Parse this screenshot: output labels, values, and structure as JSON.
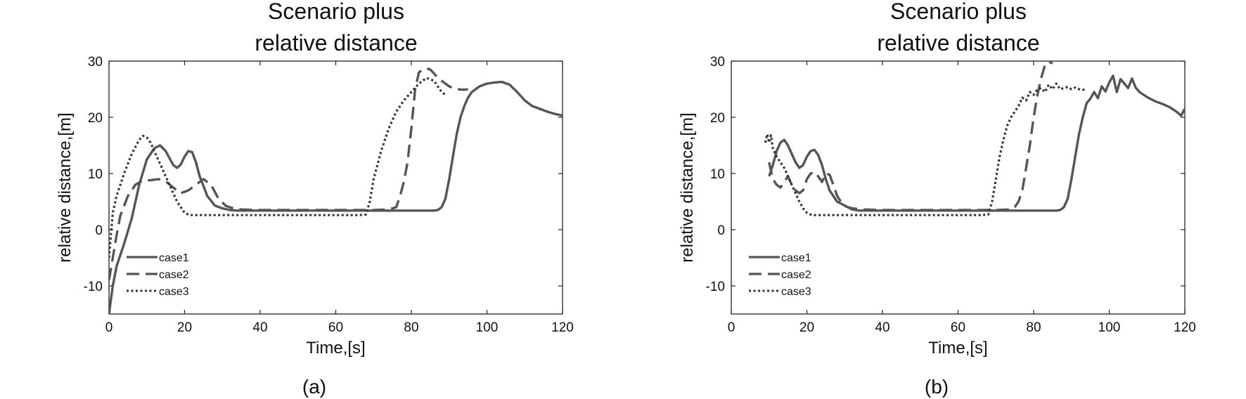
{
  "figure": {
    "captions": [
      "(a)",
      "(b)"
    ]
  },
  "chart_data": [
    {
      "type": "line",
      "title": [
        "Scenario plus",
        "relative distance"
      ],
      "xlabel": "Time,[s]",
      "ylabel": "relative distance,[m]",
      "xlim": [
        0,
        120
      ],
      "ylim": [
        -15,
        30
      ],
      "xticks": [
        0,
        20,
        40,
        60,
        80,
        100,
        120
      ],
      "yticks": [
        -10,
        0,
        10,
        20,
        30
      ],
      "grid": false,
      "legend_position": "bottom-left",
      "series": [
        {
          "name": "case1",
          "style": "solid",
          "color": "#555555",
          "x": [
            0,
            1,
            2,
            4,
            6,
            8,
            10,
            12,
            13.5,
            15,
            17,
            18,
            19,
            20,
            21,
            22,
            23,
            24,
            26,
            28,
            30,
            32,
            34,
            40,
            50,
            60,
            70,
            80,
            86,
            87,
            88,
            89,
            90,
            91,
            92,
            93,
            94,
            95,
            96,
            98,
            100,
            102,
            104,
            106,
            108,
            110,
            112,
            114,
            116,
            118,
            120
          ],
          "y": [
            -15,
            -10,
            -6.5,
            -2.5,
            2,
            8,
            12.5,
            14.5,
            15,
            14,
            11.5,
            11,
            11.6,
            13,
            14,
            13.8,
            12,
            9.5,
            6,
            4.3,
            3.8,
            3.5,
            3.4,
            3.4,
            3.4,
            3.4,
            3.4,
            3.4,
            3.4,
            3.5,
            4,
            5.5,
            9,
            13,
            17,
            20,
            22,
            23.5,
            24.5,
            25.5,
            26,
            26.2,
            26.3,
            25.8,
            24.5,
            23,
            22,
            21.5,
            21,
            20.6,
            20.3
          ]
        },
        {
          "name": "case2",
          "style": "dashed",
          "color": "#555555",
          "x": [
            0,
            1,
            2,
            3,
            5,
            7,
            9,
            11,
            13,
            15,
            17,
            19,
            21,
            23,
            25,
            27,
            29,
            31,
            33,
            35,
            40,
            50,
            60,
            70,
            74,
            76,
            77,
            78,
            79,
            80,
            81,
            82,
            83,
            84,
            85,
            86,
            87,
            88,
            89,
            90,
            92,
            94,
            95
          ],
          "y": [
            -9,
            -5,
            -1,
            2.5,
            6,
            8,
            8.8,
            8.8,
            9,
            8.6,
            7.5,
            6.5,
            7,
            8,
            9,
            8,
            5.5,
            4.2,
            3.8,
            3.6,
            3.5,
            3.5,
            3.5,
            3.5,
            3.6,
            4,
            6,
            8.5,
            12,
            18,
            25,
            28,
            28.5,
            28.7,
            28.5,
            27.8,
            27,
            26.5,
            26,
            25.5,
            25,
            24.9,
            25
          ]
        },
        {
          "name": "case3",
          "style": "dotted",
          "color": "#333333",
          "x": [
            0,
            1,
            2,
            4,
            6,
            8,
            9,
            10,
            11,
            12,
            14,
            16,
            18,
            20,
            21,
            22,
            30,
            40,
            50,
            60,
            66,
            68,
            69,
            70,
            72,
            74,
            76,
            78,
            80,
            82,
            84,
            86,
            87,
            88,
            89
          ],
          "y": [
            -5,
            3,
            6,
            10,
            13.5,
            16,
            16.7,
            16.4,
            15.5,
            14,
            11,
            8,
            5,
            3,
            2.7,
            2.6,
            2.6,
            2.6,
            2.6,
            2.6,
            2.6,
            2.7,
            5,
            9,
            14,
            18,
            21,
            23,
            24.5,
            26,
            27,
            26.5,
            25.5,
            24.5,
            24
          ]
        }
      ]
    },
    {
      "type": "line",
      "title": [
        "Scenario plus",
        "relative distance"
      ],
      "xlabel": "Time,[s]",
      "ylabel": "relative distance,[m]",
      "xlim": [
        0,
        120
      ],
      "ylim": [
        -15,
        30
      ],
      "xticks": [
        0,
        20,
        40,
        60,
        80,
        100,
        120
      ],
      "yticks": [
        -10,
        0,
        10,
        20,
        30
      ],
      "grid": false,
      "legend_position": "bottom-left",
      "series": [
        {
          "name": "case1",
          "style": "solid",
          "color": "#555555",
          "x": [
            10,
            11,
            12,
            13,
            14,
            15,
            16,
            17,
            18,
            19,
            20,
            21,
            22,
            23,
            24,
            25,
            26,
            27,
            28,
            30,
            32,
            34,
            40,
            50,
            60,
            70,
            80,
            86,
            87,
            88,
            89,
            90,
            91,
            92,
            93,
            94,
            95,
            96,
            97,
            98,
            99,
            100,
            101,
            102,
            103,
            104,
            105,
            106,
            107,
            108,
            110,
            112,
            114,
            116,
            118,
            119,
            120
          ],
          "y": [
            9.5,
            11.5,
            14,
            15.5,
            16,
            15,
            13.5,
            12,
            11,
            11.5,
            13,
            14,
            14.2,
            13.3,
            11.5,
            9,
            7,
            6,
            5,
            4.3,
            3.6,
            3.4,
            3.4,
            3.4,
            3.4,
            3.4,
            3.4,
            3.4,
            3.5,
            4,
            5.5,
            9,
            13,
            17,
            20,
            22.5,
            23.3,
            24.5,
            23.4,
            25.5,
            24.6,
            26.2,
            27.4,
            24.5,
            26.8,
            26,
            25.2,
            26.9,
            25.3,
            24.5,
            23.6,
            22.9,
            22.4,
            21.8,
            20.9,
            20.3,
            21.5
          ]
        },
        {
          "name": "case2",
          "style": "dashed",
          "color": "#555555",
          "x": [
            10,
            11,
            12,
            13,
            14,
            15,
            16,
            17,
            18,
            19,
            20,
            21,
            22,
            23,
            24,
            25,
            26,
            27,
            28,
            29,
            30,
            32,
            35,
            40,
            50,
            60,
            70,
            74,
            75,
            76,
            77,
            78,
            79,
            80,
            81,
            82,
            83,
            84,
            85
          ],
          "y": [
            12,
            9,
            8,
            7.5,
            8.5,
            9.5,
            8,
            7,
            6.5,
            7,
            9,
            10,
            10.3,
            9.5,
            8.5,
            10,
            9.8,
            8,
            6,
            5,
            4.2,
            3.8,
            3.6,
            3.5,
            3.5,
            3.5,
            3.5,
            3.6,
            4,
            5,
            7,
            11,
            15,
            20,
            24,
            27,
            29.3,
            29.9,
            29.6
          ]
        },
        {
          "name": "case3",
          "style": "dotted",
          "color": "#333333",
          "x": [
            9,
            9.5,
            10,
            10.5,
            11,
            12,
            13,
            14,
            15,
            16,
            17,
            18,
            19,
            20,
            21,
            22,
            30,
            40,
            50,
            60,
            66,
            68,
            69,
            70,
            71,
            72,
            73,
            74,
            75,
            76,
            77,
            78,
            79,
            80,
            81,
            82,
            83,
            84,
            85,
            86,
            87,
            88,
            89,
            90,
            91,
            92,
            93,
            94
          ],
          "y": [
            15.5,
            17,
            15.5,
            16.8,
            14.5,
            13,
            12,
            11,
            9.5,
            8,
            6.5,
            5,
            3.8,
            3,
            2.7,
            2.6,
            2.6,
            2.6,
            2.6,
            2.6,
            2.6,
            2.7,
            5,
            9,
            13,
            16,
            18.5,
            20,
            21,
            22,
            23.5,
            23,
            24.5,
            24,
            25,
            25.2,
            24.5,
            25.8,
            25,
            26,
            25,
            25.2,
            25.4,
            25,
            25.3,
            25,
            24.9,
            25
          ]
        }
      ]
    }
  ]
}
